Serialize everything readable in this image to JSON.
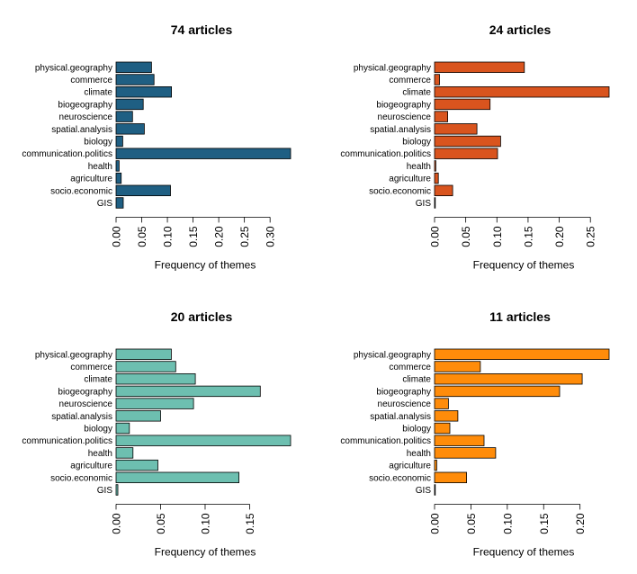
{
  "chart_data": [
    {
      "type": "bar",
      "orientation": "horizontal",
      "title": "74 articles",
      "xlabel": "Frequency of themes",
      "ylabel": "",
      "color": "#1f5f83",
      "categories": [
        "physical.geography",
        "commerce",
        "climate",
        "biogeography",
        "neuroscience",
        "spatial.analysis",
        "biology",
        "communication.politics",
        "health",
        "agriculture",
        "socio.economic",
        "GIS"
      ],
      "values": [
        0.069,
        0.074,
        0.108,
        0.053,
        0.032,
        0.055,
        0.013,
        0.34,
        0.006,
        0.01,
        0.106,
        0.014
      ],
      "xlim": [
        0,
        0.34
      ],
      "xticks": [
        "0.00",
        "0.05",
        "0.10",
        "0.15",
        "0.20",
        "0.25",
        "0.30"
      ]
    },
    {
      "type": "bar",
      "orientation": "horizontal",
      "title": "24 articles",
      "xlabel": "Frequency of themes",
      "ylabel": "",
      "color": "#d9541e",
      "categories": [
        "physical.geography",
        "commerce",
        "climate",
        "biogeography",
        "neuroscience",
        "spatial.analysis",
        "biology",
        "communication.politics",
        "health",
        "agriculture",
        "socio.economic",
        "GIS"
      ],
      "values": [
        0.144,
        0.008,
        0.28,
        0.089,
        0.021,
        0.068,
        0.106,
        0.101,
        0.002,
        0.006,
        0.029,
        0.001
      ],
      "xlim": [
        0,
        0.28
      ],
      "xticks": [
        "0.00",
        "0.05",
        "0.10",
        "0.15",
        "0.20",
        "0.25"
      ]
    },
    {
      "type": "bar",
      "orientation": "horizontal",
      "title": "20 articles",
      "xlabel": "Frequency of themes",
      "ylabel": "",
      "color": "#6dbfb0",
      "categories": [
        "physical.geography",
        "commerce",
        "climate",
        "biogeography",
        "neuroscience",
        "spatial.analysis",
        "biology",
        "communication.politics",
        "health",
        "agriculture",
        "socio.economic",
        "GIS"
      ],
      "values": [
        0.062,
        0.067,
        0.089,
        0.162,
        0.087,
        0.05,
        0.015,
        0.196,
        0.019,
        0.047,
        0.138,
        0.002
      ],
      "xlim": [
        0,
        0.196
      ],
      "xticks": [
        "0.00",
        "0.05",
        "0.10",
        "0.15"
      ]
    },
    {
      "type": "bar",
      "orientation": "horizontal",
      "title": "11 articles",
      "xlabel": "Frequency of themes",
      "ylabel": "",
      "color": "#ff8c0a",
      "categories": [
        "physical.geography",
        "commerce",
        "climate",
        "biogeography",
        "neuroscience",
        "spatial.analysis",
        "biology",
        "communication.politics",
        "health",
        "agriculture",
        "socio.economic",
        "GIS"
      ],
      "values": [
        0.24,
        0.063,
        0.203,
        0.172,
        0.019,
        0.032,
        0.021,
        0.068,
        0.084,
        0.003,
        0.044,
        0.001
      ],
      "xlim": [
        0,
        0.24
      ],
      "xticks": [
        "0.00",
        "0.05",
        "0.10",
        "0.15",
        "0.20"
      ]
    }
  ]
}
